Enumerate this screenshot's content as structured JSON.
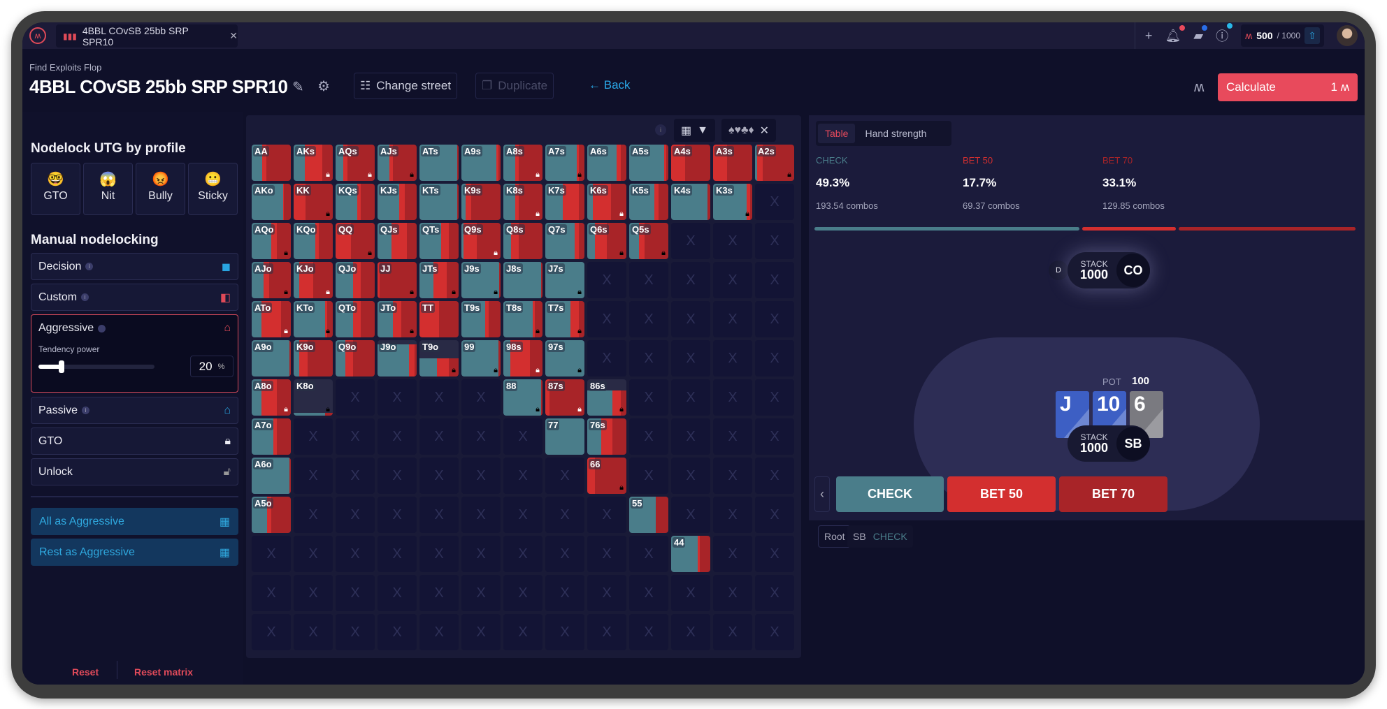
{
  "tabbar": {
    "tab_title": "4BBL COvSB 25bb SRP SPR10",
    "credits_used": "500",
    "credits_max": "/ 1000"
  },
  "header": {
    "subtitle": "Find Exploits Flop",
    "title": "4BBL COvSB 25bb SRP SPR10",
    "change_street": "Change street",
    "duplicate": "Duplicate",
    "back": "Back",
    "calculate": "Calculate",
    "calculate_count": "1"
  },
  "left": {
    "profile_heading": "Nodelock UTG by profile",
    "profiles": [
      {
        "emoji": "🤓",
        "label": "GTO"
      },
      {
        "emoji": "😱",
        "label": "Nit"
      },
      {
        "emoji": "😡",
        "label": "Bully"
      },
      {
        "emoji": "😬",
        "label": "Sticky"
      }
    ],
    "manual_heading": "Manual nodelocking",
    "items": {
      "decision": "Decision",
      "custom": "Custom",
      "aggressive": "Aggressive",
      "passive": "Passive",
      "gto": "GTO",
      "unlock": "Unlock"
    },
    "tendency_label": "Tendency power",
    "tendency_value": "20",
    "tendency_unit": "%",
    "tendency_fraction": 0.2,
    "all_as": "All as Aggressive",
    "rest_as": "Rest as Aggressive",
    "reset": "Reset",
    "reset_matrix": "Reset matrix"
  },
  "matrix": {
    "colors": {
      "check": "#4a7d8a",
      "bet50": "#d32f2f",
      "bet70": "#a82428"
    },
    "empty_mark": "X",
    "rows": [
      [
        [
          "AA",
          0.26,
          0.11,
          0.63,
          0,
          1
        ],
        [
          "AKs",
          0.28,
          0.46,
          0.26,
          2,
          1
        ],
        [
          "AQs",
          0.2,
          0.1,
          0.7,
          2,
          1
        ],
        [
          "AJs",
          0.3,
          0.1,
          0.6,
          1,
          1
        ],
        [
          "ATs",
          0.97,
          0,
          0.03,
          0,
          1
        ],
        [
          "A9s",
          0.9,
          0.05,
          0.05,
          0,
          1
        ],
        [
          "A8s",
          0.3,
          0.1,
          0.6,
          2,
          1
        ],
        [
          "A7s",
          0.8,
          0.05,
          0.15,
          1,
          1
        ],
        [
          "A6s",
          0.75,
          0.1,
          0.15,
          0,
          1
        ],
        [
          "A5s",
          0.9,
          0.05,
          0.05,
          0,
          1
        ],
        [
          "A4s",
          0,
          0.35,
          0.65,
          0,
          1
        ],
        [
          "A3s",
          0,
          0.35,
          0.65,
          0,
          1
        ],
        [
          "A2s",
          0.05,
          0.15,
          0.8,
          1,
          1
        ]
      ],
      [
        [
          "AKo",
          0.8,
          0.03,
          0.17,
          0,
          1
        ],
        [
          "KK",
          0,
          0.3,
          0.7,
          1,
          1
        ],
        [
          "KQs",
          0.55,
          0.1,
          0.35,
          0,
          1
        ],
        [
          "KJs",
          0.55,
          0.15,
          0.3,
          0,
          1
        ],
        [
          "KTs",
          0.97,
          0,
          0.03,
          0,
          1
        ],
        [
          "K9s",
          0.1,
          0.15,
          0.75,
          0,
          1
        ],
        [
          "K8s",
          0.3,
          0.1,
          0.6,
          2,
          1
        ],
        [
          "K7s",
          0.45,
          0.4,
          0.15,
          0,
          1
        ],
        [
          "K6s",
          0.15,
          0.45,
          0.4,
          2,
          1
        ],
        [
          "K5s",
          0.65,
          0.1,
          0.25,
          0,
          1
        ],
        [
          "K4s",
          0.92,
          0,
          0.08,
          0,
          1
        ],
        [
          "K3s",
          0.85,
          0.1,
          0.05,
          1,
          1
        ],
        null
      ],
      [
        [
          "AQo",
          0.5,
          0.15,
          0.35,
          1,
          1
        ],
        [
          "KQo",
          0.55,
          0.1,
          0.35,
          0,
          1
        ],
        [
          "QQ",
          0,
          0.4,
          0.6,
          1,
          1
        ],
        [
          "QJs",
          0.35,
          0.4,
          0.25,
          0,
          1
        ],
        [
          "QTs",
          0.55,
          0.2,
          0.25,
          0,
          1
        ],
        [
          "Q9s",
          0.05,
          0.35,
          0.6,
          2,
          1
        ],
        [
          "Q8s",
          0.2,
          0.2,
          0.6,
          0,
          1
        ],
        [
          "Q7s",
          0.75,
          0.1,
          0.15,
          0,
          1
        ],
        [
          "Q6s",
          0.2,
          0.3,
          0.5,
          1,
          1
        ],
        [
          "Q5s",
          0.25,
          0.15,
          0.6,
          1,
          1
        ],
        null,
        null,
        null
      ],
      [
        [
          "AJo",
          0.3,
          0.15,
          0.55,
          1,
          1
        ],
        [
          "KJo",
          0.15,
          0.35,
          0.5,
          2,
          1
        ],
        [
          "QJo",
          0.45,
          0.2,
          0.35,
          0,
          1
        ],
        [
          "JJ",
          0,
          0.05,
          0.95,
          1,
          1
        ],
        [
          "JTs",
          0.35,
          0.35,
          0.3,
          1,
          1
        ],
        [
          "J9s",
          0.97,
          0,
          0.03,
          1,
          1
        ],
        [
          "J8s",
          0.97,
          0,
          0.03,
          0,
          1
        ],
        [
          "J7s",
          1,
          0,
          0,
          1,
          1
        ],
        null,
        null,
        null,
        null,
        null
      ],
      [
        [
          "ATo",
          0.25,
          0.5,
          0.25,
          2,
          1
        ],
        [
          "KTo",
          0.8,
          0.05,
          0.15,
          1,
          1
        ],
        [
          "QTo",
          0.45,
          0.2,
          0.35,
          0,
          1
        ],
        [
          "JTo",
          0.4,
          0.2,
          0.4,
          1,
          1
        ],
        [
          "TT",
          0,
          0.5,
          0.5,
          0,
          1
        ],
        [
          "T9s",
          0.6,
          0.1,
          0.3,
          0,
          1
        ],
        [
          "T8s",
          0.75,
          0.05,
          0.2,
          1,
          1
        ],
        [
          "T7s",
          0.65,
          0.2,
          0.15,
          1,
          1
        ],
        null,
        null,
        null,
        null,
        null
      ],
      [
        [
          "A9o",
          0.97,
          0,
          0.03,
          0,
          1
        ],
        [
          "K9o",
          0.15,
          0.2,
          0.65,
          0,
          1
        ],
        [
          "Q9o",
          0.25,
          0.2,
          0.55,
          0,
          1
        ],
        [
          "J9o",
          0.8,
          0.15,
          0.05,
          0,
          0.88
        ],
        [
          "T9o",
          0.45,
          0.3,
          0.25,
          1,
          0.5
        ],
        [
          "99",
          0.95,
          0,
          0.05,
          1,
          1
        ],
        [
          "98s",
          0.18,
          0.5,
          0.32,
          2,
          1
        ],
        [
          "97s",
          1,
          0,
          0,
          1,
          1
        ],
        null,
        null,
        null,
        null,
        null
      ],
      [
        [
          "A8o",
          0.25,
          0.4,
          0.35,
          2,
          1
        ],
        [
          "K8o",
          0.8,
          0,
          0.2,
          1,
          0.08
        ],
        null,
        null,
        null,
        null,
        [
          "88",
          0.97,
          0,
          0.03,
          1,
          1
        ],
        [
          "87s",
          0,
          0.1,
          0.9,
          2,
          1
        ],
        [
          "86s",
          0.65,
          0.2,
          0.15,
          1,
          0.7
        ],
        null,
        null,
        null,
        null
      ],
      [
        [
          "A7o",
          0.55,
          0.1,
          0.35,
          0,
          1
        ],
        null,
        null,
        null,
        null,
        null,
        null,
        [
          "77",
          1,
          0,
          0,
          0,
          1
        ],
        [
          "76s",
          0.35,
          0.3,
          0.35,
          0,
          1
        ],
        null,
        null,
        null,
        null
      ],
      [
        [
          "A6o",
          0.97,
          0,
          0.03,
          0,
          1
        ],
        null,
        null,
        null,
        null,
        null,
        null,
        null,
        [
          "66",
          0,
          0.2,
          0.8,
          1,
          1
        ],
        null,
        null,
        null,
        null
      ],
      [
        [
          "A5o",
          0.4,
          0.1,
          0.5,
          0,
          1
        ],
        null,
        null,
        null,
        null,
        null,
        null,
        null,
        null,
        [
          "55",
          0.68,
          0,
          0.32,
          0,
          1
        ],
        null,
        null,
        null
      ],
      [
        null,
        null,
        null,
        null,
        null,
        null,
        null,
        null,
        null,
        null,
        [
          "44",
          0.68,
          0.05,
          0.27,
          0,
          1
        ],
        null,
        null
      ],
      [
        null,
        null,
        null,
        null,
        null,
        null,
        null,
        null,
        null,
        null,
        null,
        null,
        null
      ],
      [
        null,
        null,
        null,
        null,
        null,
        null,
        null,
        null,
        null,
        null,
        null,
        null,
        null
      ]
    ]
  },
  "right": {
    "tabs": [
      "Table",
      "Hand strength"
    ],
    "stats": [
      {
        "label": "CHECK",
        "value": "49.3%",
        "combos": "193.54 combos",
        "fraction": 0.493,
        "color": "#4a7d8a"
      },
      {
        "label": "BET 50",
        "value": "17.7%",
        "combos": "69.37 combos",
        "fraction": 0.177,
        "color": "#d32f2f"
      },
      {
        "label": "BET 70",
        "value": "33.1%",
        "combos": "129.85 combos",
        "fraction": 0.331,
        "color": "#a82428"
      }
    ],
    "table": {
      "dealer": "D",
      "co_stack_label": "STACK",
      "co_stack": "1000",
      "co_pos": "CO",
      "pot_label": "POT",
      "pot": "100",
      "bet_amount": "100",
      "sb_stack_label": "STACK",
      "sb_stack": "1000",
      "sb_pos": "SB",
      "cards": [
        {
          "rank": "J",
          "color": "#3d5fc4"
        },
        {
          "rank": "10",
          "color": "#3d5fc4"
        },
        {
          "rank": "6",
          "color": "#7a7a80"
        }
      ]
    },
    "actions": [
      "CHECK",
      "BET 50",
      "BET 70"
    ],
    "breadcrumb": {
      "root": "Root",
      "player": "SB",
      "action": "CHECK"
    }
  }
}
